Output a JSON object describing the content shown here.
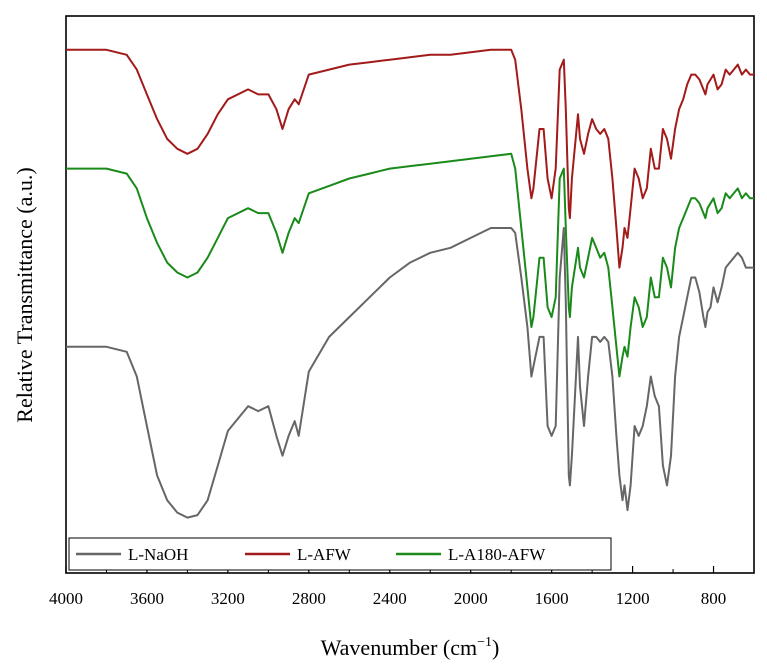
{
  "chart_data": {
    "type": "line",
    "xlabel": "Wavenumber (cm",
    "xlabel_sup": "−1",
    "xlabel_end": ")",
    "ylabel": "Relative Transmittance (a.u.)",
    "x_reversed": true,
    "xlim": [
      4000,
      600
    ],
    "ylim": [
      0,
      100
    ],
    "xticks": [
      4000,
      3600,
      3200,
      2800,
      2400,
      2000,
      1600,
      1200,
      800
    ],
    "yticks_shown": false,
    "grid": false,
    "legend_position": "bottom",
    "series": [
      {
        "name": "L-NaOH",
        "color": "#666666",
        "x": [
          4000,
          3800,
          3700,
          3650,
          3600,
          3550,
          3500,
          3450,
          3400,
          3350,
          3300,
          3250,
          3200,
          3100,
          3050,
          3000,
          2960,
          2930,
          2900,
          2870,
          2850,
          2800,
          2700,
          2600,
          2500,
          2400,
          2300,
          2200,
          2100,
          2000,
          1900,
          1800,
          1780,
          1750,
          1720,
          1700,
          1690,
          1660,
          1640,
          1620,
          1600,
          1580,
          1560,
          1540,
          1530,
          1515,
          1510,
          1500,
          1470,
          1460,
          1440,
          1420,
          1400,
          1380,
          1360,
          1340,
          1320,
          1300,
          1280,
          1265,
          1250,
          1240,
          1225,
          1210,
          1190,
          1170,
          1150,
          1130,
          1110,
          1090,
          1070,
          1050,
          1030,
          1010,
          990,
          970,
          950,
          930,
          910,
          890,
          870,
          850,
          840,
          830,
          815,
          800,
          780,
          760,
          740,
          720,
          700,
          680,
          660,
          640,
          620,
          600
        ],
        "y": [
          36,
          36,
          35,
          30,
          20,
          10,
          5,
          2.5,
          1.5,
          2,
          5,
          12,
          19,
          24,
          23,
          24,
          18,
          14,
          18,
          21,
          18,
          31,
          38,
          42,
          46,
          50,
          53,
          55,
          56,
          58,
          60,
          60,
          59,
          50,
          40,
          30,
          32,
          38,
          38,
          20,
          18,
          20,
          50,
          60,
          45,
          10,
          8,
          14,
          38,
          28,
          20,
          30,
          38,
          38,
          37,
          38,
          37,
          30,
          18,
          10,
          5,
          8,
          3,
          8,
          20,
          18,
          20,
          24,
          30,
          26,
          24,
          12,
          8,
          14,
          30,
          38,
          42,
          46,
          50,
          50,
          47,
          42,
          40,
          43,
          44,
          48,
          45,
          48,
          52,
          53,
          54,
          55,
          54,
          52,
          52,
          52
        ]
      },
      {
        "name": "L-AFW",
        "color": "#a31a1a",
        "x": [
          4000,
          3800,
          3700,
          3650,
          3600,
          3550,
          3500,
          3450,
          3400,
          3350,
          3300,
          3250,
          3200,
          3100,
          3050,
          3000,
          2960,
          2930,
          2900,
          2870,
          2850,
          2800,
          2700,
          2600,
          2500,
          2400,
          2300,
          2200,
          2100,
          2000,
          1900,
          1800,
          1780,
          1750,
          1720,
          1700,
          1690,
          1660,
          1640,
          1620,
          1600,
          1580,
          1560,
          1540,
          1530,
          1515,
          1510,
          1500,
          1470,
          1460,
          1440,
          1420,
          1400,
          1380,
          1360,
          1340,
          1320,
          1300,
          1280,
          1265,
          1250,
          1240,
          1225,
          1210,
          1190,
          1170,
          1150,
          1130,
          1110,
          1090,
          1070,
          1050,
          1030,
          1010,
          990,
          970,
          950,
          930,
          910,
          890,
          870,
          850,
          840,
          830,
          815,
          800,
          780,
          760,
          740,
          720,
          700,
          680,
          660,
          640,
          620,
          600
        ],
        "y": [
          96,
          96,
          95,
          92,
          87,
          82,
          78,
          76,
          75,
          76,
          79,
          83,
          86,
          88,
          87,
          87,
          84,
          80,
          84,
          86,
          85,
          91,
          92,
          93,
          93.5,
          94,
          94.5,
          95,
          95,
          95.5,
          96,
          96,
          94,
          84,
          72,
          66,
          68,
          80,
          80,
          70,
          66,
          72,
          92,
          94,
          84,
          64,
          62,
          70,
          83,
          78,
          75,
          79,
          82,
          80,
          79,
          80,
          78,
          70,
          60,
          52,
          56,
          60,
          58,
          64,
          72,
          70,
          66,
          68,
          76,
          72,
          72,
          80,
          78,
          74,
          80,
          84,
          86,
          89,
          91,
          91,
          90,
          88,
          87,
          89,
          90,
          91,
          88,
          89,
          92,
          91,
          92,
          93,
          91,
          92,
          91,
          91
        ]
      },
      {
        "name": "L-A180-AFW",
        "color": "#1a8a1a",
        "x": [
          4000,
          3800,
          3700,
          3650,
          3600,
          3550,
          3500,
          3450,
          3400,
          3350,
          3300,
          3250,
          3200,
          3100,
          3050,
          3000,
          2960,
          2930,
          2900,
          2870,
          2850,
          2800,
          2700,
          2600,
          2500,
          2400,
          2300,
          2200,
          2100,
          2000,
          1900,
          1800,
          1780,
          1750,
          1720,
          1700,
          1690,
          1660,
          1640,
          1620,
          1600,
          1580,
          1560,
          1540,
          1530,
          1515,
          1510,
          1500,
          1470,
          1460,
          1440,
          1420,
          1400,
          1380,
          1360,
          1340,
          1320,
          1300,
          1280,
          1265,
          1250,
          1240,
          1225,
          1210,
          1190,
          1170,
          1150,
          1130,
          1110,
          1090,
          1070,
          1050,
          1030,
          1010,
          990,
          970,
          950,
          930,
          910,
          890,
          870,
          850,
          840,
          830,
          815,
          800,
          780,
          760,
          740,
          720,
          700,
          680,
          660,
          640,
          620,
          600
        ],
        "y": [
          72,
          72,
          71,
          68,
          62,
          57,
          53,
          51,
          50,
          51,
          54,
          58,
          62,
          64,
          63,
          63,
          59,
          55,
          59,
          62,
          61,
          67,
          68.5,
          70,
          71,
          72,
          72.5,
          73,
          73.5,
          74,
          74.5,
          75,
          72,
          60,
          48,
          40,
          42,
          54,
          54,
          44,
          42,
          46,
          70,
          72,
          60,
          44,
          42,
          48,
          56,
          52,
          50,
          54,
          58,
          56,
          54,
          55,
          52,
          44,
          36,
          30,
          34,
          36,
          34,
          40,
          46,
          44,
          40,
          42,
          50,
          46,
          46,
          54,
          52,
          48,
          56,
          60,
          62,
          64,
          66,
          66,
          65,
          63,
          62,
          64,
          65,
          66,
          63,
          64,
          67,
          66,
          67,
          68,
          66,
          67,
          66,
          66
        ]
      }
    ]
  }
}
